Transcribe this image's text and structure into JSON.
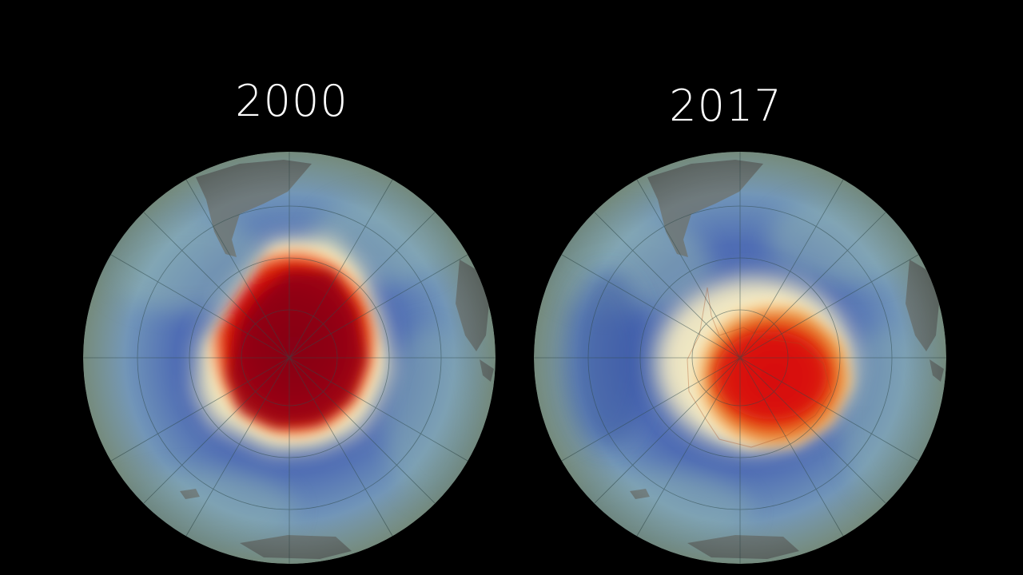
{
  "panels": [
    {
      "year": "2000",
      "hole_core_color": "#8a0010",
      "hole_mid_color": "#e00a0a"
    },
    {
      "year": "2017",
      "hole_core_color": "#d81008",
      "hole_mid_color": "#e86a20"
    }
  ],
  "colors": {
    "background": "#000000",
    "ocean_edge": "#8fb0a8",
    "low_ozone_ring": "#3e5fa8",
    "halo": "#fff6c8",
    "land": "#6f7774"
  }
}
